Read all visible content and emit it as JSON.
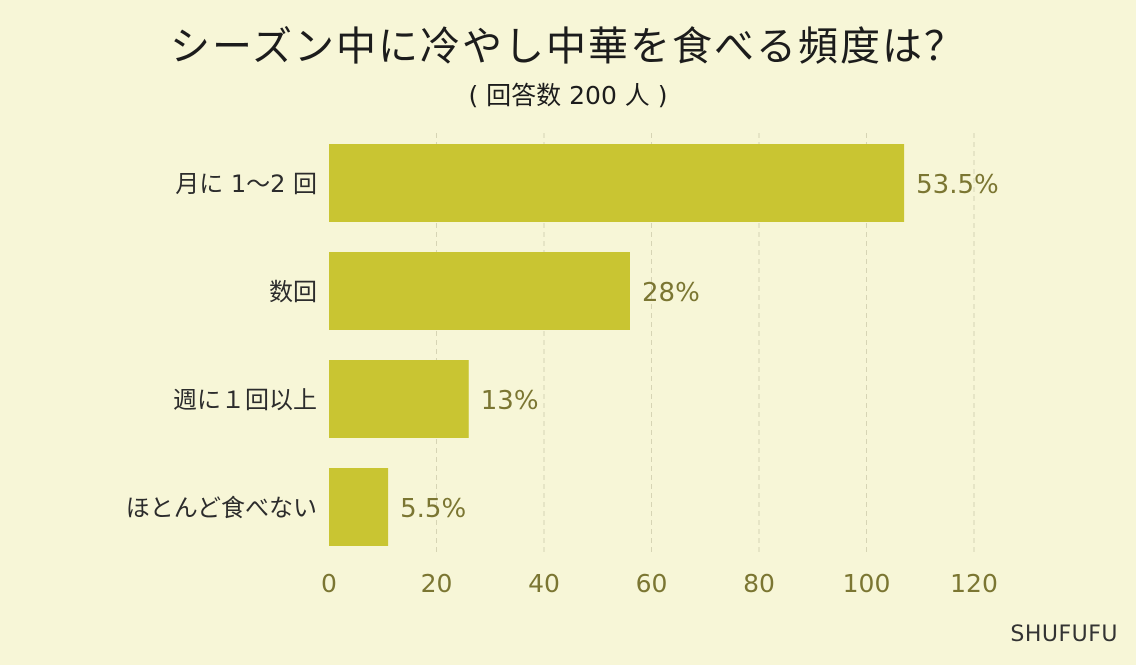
{
  "chart_data": {
    "type": "bar",
    "orientation": "horizontal",
    "title": "シーズン中に冷やし中華を食べる頻度は？",
    "subtitle": "( 回答数 200 人 )",
    "categories": [
      "月に 1〜2 回",
      "数回",
      "週に１回以上",
      "ほとんど食べない"
    ],
    "values": [
      107,
      56,
      26,
      11
    ],
    "value_labels": [
      "53.5%",
      "28%",
      "13%",
      "5.5%"
    ],
    "xlim": [
      0,
      120
    ],
    "x_ticks": [
      "0",
      "20",
      "40",
      "60",
      "80",
      "100",
      "120"
    ],
    "grid": "vertical dashed",
    "bar_color": "#c9c532",
    "label_color": "#7b7632",
    "background_color": "#f7f6d7"
  },
  "brand": "SHUFUFU"
}
